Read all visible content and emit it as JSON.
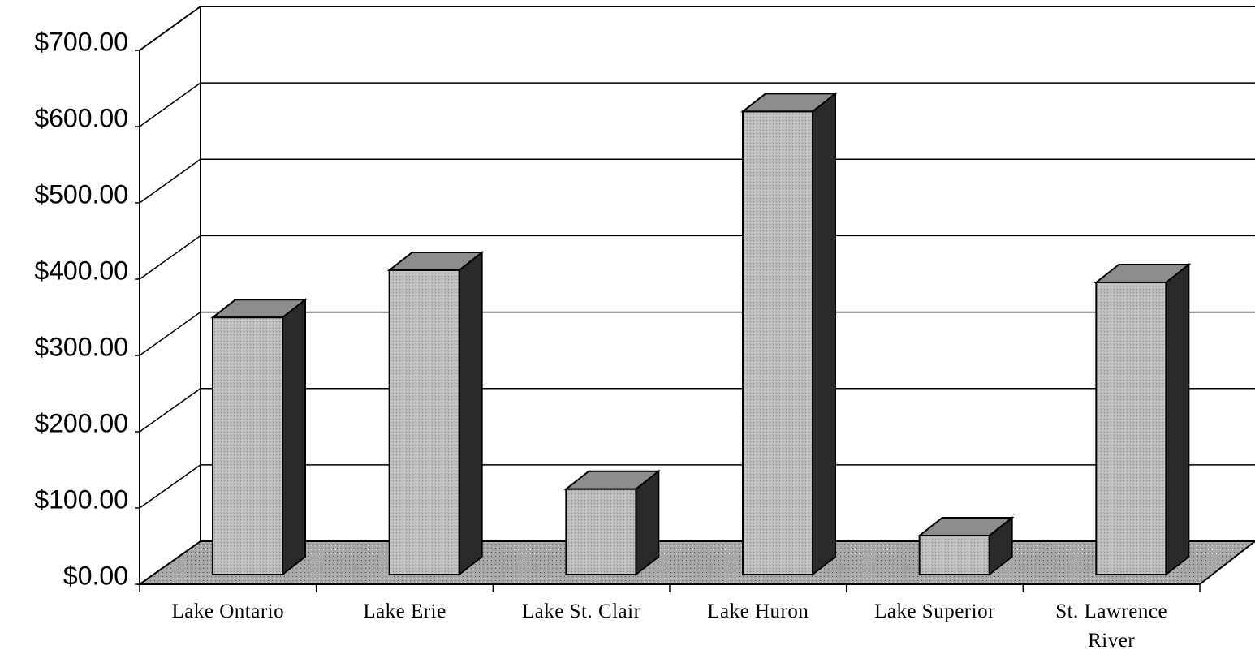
{
  "chart_data": {
    "type": "bar3d",
    "categories": [
      "Lake Ontario",
      "Lake Erie",
      "Lake St. Clair",
      "Lake Huron",
      "Lake Superior",
      "St. Lawrence River"
    ],
    "values": [
      337,
      399,
      112,
      607,
      51,
      383
    ],
    "color": "#b8b8b8",
    "ylim": [
      0,
      700
    ],
    "yticks": [
      {
        "value": 0,
        "label": "$0.00"
      },
      {
        "value": 100,
        "label": "$100.00"
      },
      {
        "value": 200,
        "label": "$200.00"
      },
      {
        "value": 300,
        "label": "$300.00"
      },
      {
        "value": 400,
        "label": "$400.00"
      },
      {
        "value": 500,
        "label": "$500.00"
      },
      {
        "value": 600,
        "label": "$600.00"
      },
      {
        "value": 700,
        "label": "$700.00"
      }
    ],
    "grid": true
  }
}
